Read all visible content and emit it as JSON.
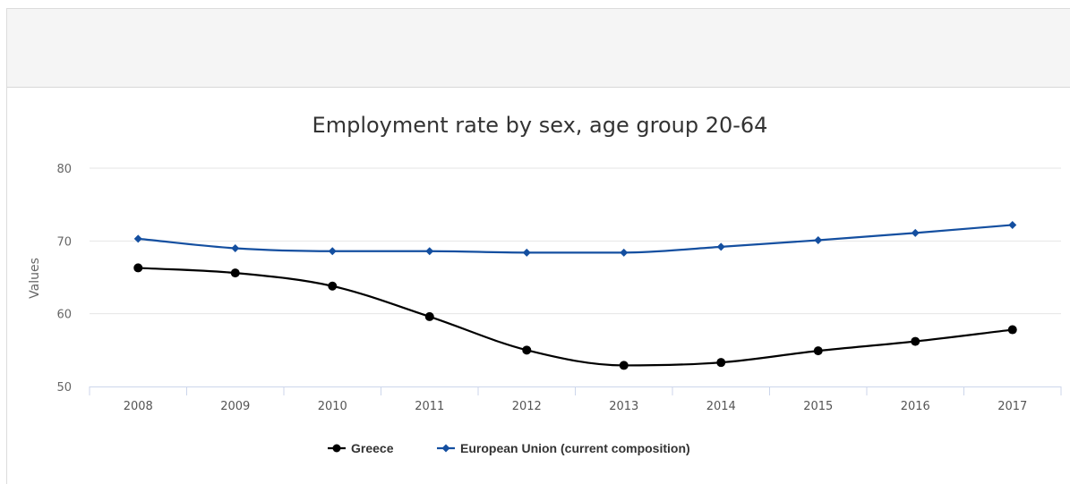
{
  "chart_data": {
    "type": "line",
    "title": "Employment rate by sex, age group 20-64",
    "xlabel": "",
    "ylabel": "Values",
    "x": [
      "2008",
      "2009",
      "2010",
      "2011",
      "2012",
      "2013",
      "2014",
      "2015",
      "2016",
      "2017"
    ],
    "ylim": [
      50,
      80
    ],
    "yticks": [
      50,
      60,
      70,
      80
    ],
    "grid": true,
    "legend_position": "bottom",
    "series": [
      {
        "name": "Greece",
        "color": "#000000",
        "marker": "circle",
        "values": [
          66.3,
          65.6,
          63.8,
          59.6,
          55.0,
          52.9,
          53.3,
          54.9,
          56.2,
          57.8
        ]
      },
      {
        "name": "European Union (current composition)",
        "color": "#144fa0",
        "marker": "diamond",
        "values": [
          70.3,
          69.0,
          68.6,
          68.6,
          68.4,
          68.4,
          69.2,
          70.1,
          71.1,
          72.2
        ]
      }
    ]
  }
}
